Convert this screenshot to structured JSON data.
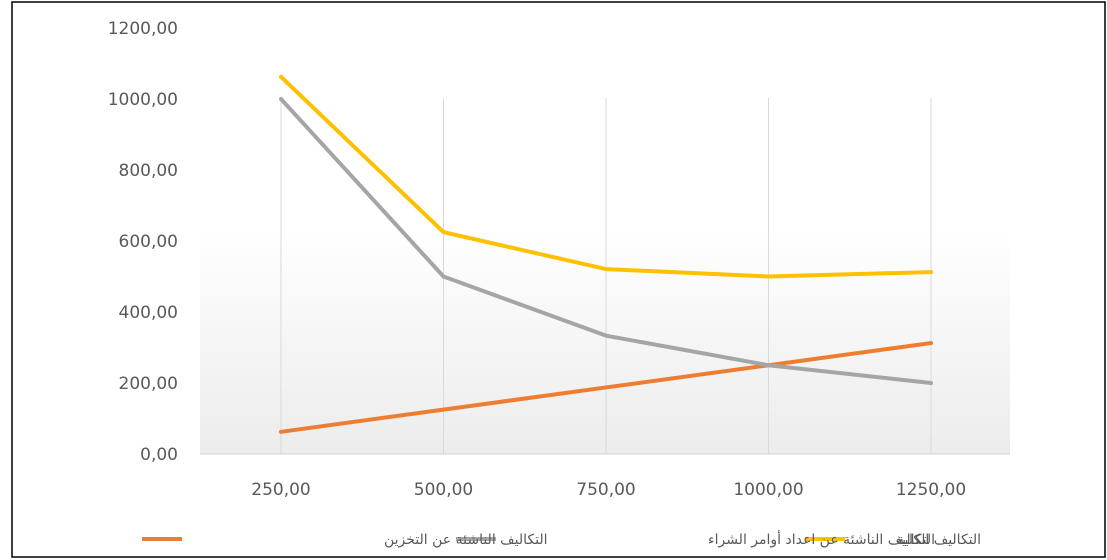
{
  "chart_data": {
    "type": "line",
    "categories": [
      "250,00",
      "500,00",
      "750,00",
      "1000,00",
      "1250,00"
    ],
    "x": [
      250,
      500,
      750,
      1000,
      1250
    ],
    "series": [
      {
        "name": "التكاليف الناشئة عن التخزين",
        "color": "#ED7D31",
        "values": [
          62.5,
          125,
          187.5,
          250,
          312.5
        ]
      },
      {
        "name": "التكاليف الناشئة عن اعداد أوامر الشراء",
        "color": "#A5A5A5",
        "values": [
          1000,
          500,
          333.33,
          250,
          200
        ]
      },
      {
        "name": "التكاليف الكلية",
        "color": "#FFC000",
        "values": [
          1062.5,
          625,
          520.83,
          500,
          512.5
        ]
      }
    ],
    "y_ticks": [
      "0,00",
      "200,00",
      "400,00",
      "600,00",
      "800,00",
      "1000,00",
      "1200,00"
    ],
    "ylim": [
      0,
      1200
    ],
    "grid": "vertical",
    "legend_position": "bottom",
    "title": "",
    "xlabel": "",
    "ylabel": ""
  }
}
